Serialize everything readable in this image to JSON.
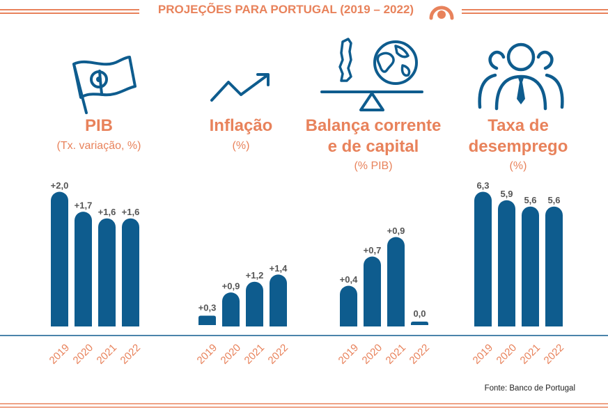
{
  "title": "PROJEÇÕES PARA PORTUGAL (2019 – 2022)",
  "source": "Fonte: Banco de Portugal",
  "colors": {
    "accent": "#e8825b",
    "bar": "#0e5c8e",
    "value_text": "#555555"
  },
  "icons": [
    "portugal-flag-icon",
    "trend-up-arrow-icon",
    "balance-scale-portugal-globe-icon",
    "people-group-icon",
    "orange-circle-logo-icon"
  ],
  "chart_data": [
    {
      "type": "bar",
      "title": "PIB",
      "subtitle": "(Tx. variação, %)",
      "categories": [
        "2019",
        "2020",
        "2021",
        "2022"
      ],
      "values": [
        2.0,
        1.7,
        1.6,
        1.6
      ],
      "labels": [
        "+2,0",
        "+1,7",
        "+1,6",
        "+1,6"
      ]
    },
    {
      "type": "bar",
      "title": "Inflação",
      "subtitle": "(%)",
      "categories": [
        "2019",
        "2020",
        "2021",
        "2022"
      ],
      "values": [
        0.3,
        0.9,
        1.2,
        1.4
      ],
      "labels": [
        "+0,3",
        "+0,9",
        "+1,2",
        "+1,4"
      ]
    },
    {
      "type": "bar",
      "title": "Balança corrente e de capital",
      "title_lines": [
        "Balança corrente",
        "e de capital"
      ],
      "subtitle": "(% PIB)",
      "categories": [
        "2019",
        "2020",
        "2021",
        "2022"
      ],
      "values": [
        0.4,
        0.7,
        0.9,
        0.0
      ],
      "labels": [
        "+0,4",
        "+0,7",
        "+0,9",
        "0,0"
      ]
    },
    {
      "type": "bar",
      "title": "Taxa de desemprego",
      "title_lines": [
        "Taxa de",
        "desemprego"
      ],
      "subtitle": "(%)",
      "categories": [
        "2019",
        "2020",
        "2021",
        "2022"
      ],
      "values": [
        6.3,
        5.9,
        5.6,
        5.6
      ],
      "labels": [
        "6,3",
        "5,9",
        "5,6",
        "5,6"
      ]
    }
  ]
}
